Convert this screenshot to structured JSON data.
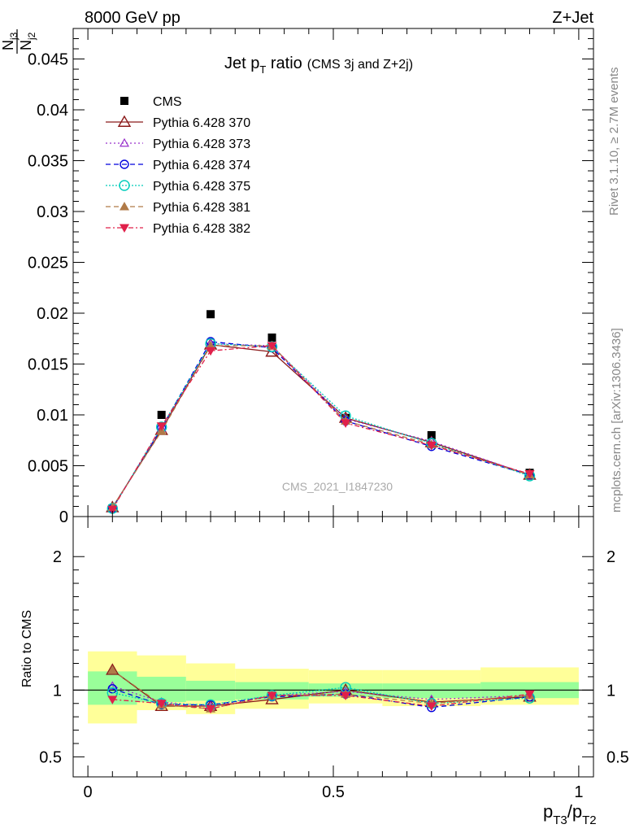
{
  "header": {
    "energy_label": "8000 GeV pp",
    "process_label": "Z+Jet"
  },
  "side": {
    "rivet_label": "Rivet 3.1.10, ≥ 2.7M events",
    "mcplots_label": "mcplots.cern.ch [arXiv:1306.3436]"
  },
  "watermark": "CMS_2021_I1847230",
  "colors": {
    "CMS": "#000000",
    "p370": "#8b1a1a",
    "p373": "#9932cc",
    "p374": "#0000dd",
    "p375": "#00ccbb",
    "p381": "#b07a48",
    "p382": "#e0204a",
    "band_inner": "#99ff99",
    "band_outer": "#ffff99"
  },
  "chart_data": [
    {
      "type": "line",
      "title": "Jet p_T ratio (CMS 3j and Z+2j)",
      "title_main": "Jet p",
      "title_sub": "T",
      "title_rest": " ratio",
      "title_paren": "(CMS 3j and Z+2j)",
      "ylabel_num": "N",
      "ylabel_num_sub": "j3",
      "ylabel_den": "N",
      "ylabel_den_sub": "j2",
      "xlim": [
        -0.03,
        1.03
      ],
      "ylim": [
        0,
        0.048
      ],
      "yticks": [
        0,
        0.005,
        0.01,
        0.015,
        0.02,
        0.025,
        0.03,
        0.035,
        0.04,
        0.045
      ],
      "ytick_labels": [
        "0",
        "0.005",
        "0.01",
        "0.015",
        "0.02",
        "0.025",
        "0.03",
        "0.035",
        "0.04",
        "0.045"
      ],
      "legend_position": "top-left",
      "x": [
        0.05,
        0.15,
        0.25,
        0.375,
        0.525,
        0.7,
        0.9
      ],
      "series": [
        {
          "name": "CMS",
          "key": "CMS",
          "marker": "square",
          "values": [
            0.0008,
            0.01,
            0.0199,
            0.0176,
            0.0097,
            0.008,
            0.0043
          ]
        },
        {
          "name": "Pythia 6.428 370",
          "key": "p370",
          "marker": "triangle-open",
          "dash": "",
          "values": [
            0.0009,
            0.0085,
            0.0169,
            0.0162,
            0.0097,
            0.0073,
            0.0041
          ]
        },
        {
          "name": "Pythia 6.428 373",
          "key": "p373",
          "marker": "triangle-open-small",
          "dash": "2,3",
          "values": [
            0.0008,
            0.0087,
            0.017,
            0.0168,
            0.0096,
            0.0074,
            0.0041
          ]
        },
        {
          "name": "Pythia 6.428 374",
          "key": "p374",
          "marker": "circle-open",
          "dash": "6,4",
          "values": [
            0.0008,
            0.0087,
            0.0172,
            0.0166,
            0.0094,
            0.0069,
            0.0041
          ]
        },
        {
          "name": "Pythia 6.428 375",
          "key": "p375",
          "marker": "circle-open-large",
          "dash": "2,2",
          "values": [
            0.0008,
            0.0088,
            0.017,
            0.0167,
            0.0099,
            0.0072,
            0.004
          ]
        },
        {
          "name": "Pythia 6.428 381",
          "key": "p381",
          "marker": "triangle-filled",
          "dash": "6,4",
          "values": [
            0.0009,
            0.0084,
            0.0168,
            0.0168,
            0.0094,
            0.0071,
            0.0041
          ]
        },
        {
          "name": "Pythia 6.428 382",
          "key": "p382",
          "marker": "triangle-down-filled",
          "dash": "6,3,2,3",
          "values": [
            0.0007,
            0.0089,
            0.0163,
            0.0168,
            0.0092,
            0.007,
            0.0042
          ]
        }
      ]
    },
    {
      "type": "line",
      "ylabel": "Ratio to CMS",
      "xlabel": "p_T3/p_T2",
      "xlabel_a": "p",
      "xlabel_a_sub": "T3",
      "xlabel_slash": "/p",
      "xlabel_b_sub": "T2",
      "xlim": [
        -0.03,
        1.03
      ],
      "ylim": [
        0.35,
        2.3
      ],
      "yticks": [
        0.5,
        1,
        2
      ],
      "ytick_labels": [
        "0.5",
        "1",
        "2"
      ],
      "xticks": [
        0,
        0.5,
        1
      ],
      "xtick_labels": [
        "0",
        "0.5",
        "1"
      ],
      "x": [
        0.05,
        0.15,
        0.25,
        0.375,
        0.525,
        0.7,
        0.9
      ],
      "bands": {
        "edges": [
          0,
          0.1,
          0.2,
          0.3,
          0.45,
          0.6,
          0.8,
          1.0
        ],
        "inner_low": [
          0.89,
          0.91,
          0.92,
          0.93,
          0.95,
          0.94,
          0.94
        ],
        "inner_high": [
          1.14,
          1.1,
          1.07,
          1.06,
          1.05,
          1.05,
          1.06
        ],
        "outer_low": [
          0.75,
          0.85,
          0.82,
          0.86,
          0.9,
          0.88,
          0.89
        ],
        "outer_high": [
          1.29,
          1.26,
          1.2,
          1.16,
          1.15,
          1.15,
          1.17
        ]
      },
      "series": [
        {
          "name": "Pythia 6.428 370",
          "key": "p370",
          "marker": "triangle-open",
          "dash": "",
          "values": [
            1.15,
            0.88,
            0.88,
            0.93,
            1.0,
            0.91,
            0.95
          ]
        },
        {
          "name": "Pythia 6.428 373",
          "key": "p373",
          "marker": "triangle-open-small",
          "dash": "2,3",
          "values": [
            1.03,
            0.91,
            0.88,
            0.96,
            0.99,
            0.93,
            0.96
          ]
        },
        {
          "name": "Pythia 6.428 374",
          "key": "p374",
          "marker": "circle-open",
          "dash": "6,4",
          "values": [
            1.01,
            0.89,
            0.89,
            0.95,
            0.97,
            0.87,
            0.95
          ]
        },
        {
          "name": "Pythia 6.428 375",
          "key": "p375",
          "marker": "circle-open-large",
          "dash": "2,2",
          "values": [
            0.98,
            0.9,
            0.89,
            0.96,
            1.02,
            0.9,
            0.94
          ]
        },
        {
          "name": "Pythia 6.428 381",
          "key": "p381",
          "marker": "triangle-filled",
          "dash": "6,4",
          "values": [
            1.15,
            0.89,
            0.86,
            0.96,
            0.97,
            0.9,
            0.96
          ]
        },
        {
          "name": "Pythia 6.428 382",
          "key": "p382",
          "marker": "triangle-down-filled",
          "dash": "6,3,2,3",
          "values": [
            0.93,
            0.9,
            0.86,
            0.96,
            0.96,
            0.88,
            0.97
          ]
        }
      ]
    }
  ]
}
